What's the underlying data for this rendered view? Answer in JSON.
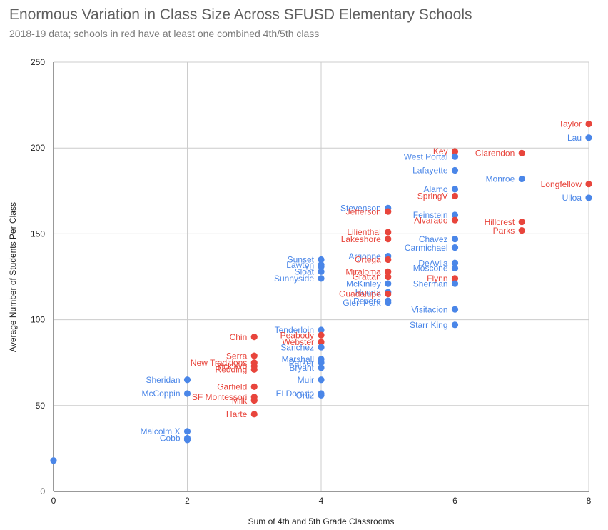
{
  "chart_data": {
    "type": "scatter",
    "title": "Enormous Variation in Class Size Across SFUSD Elementary Schools",
    "subtitle": "2018-19 data; schools in red have at least one combined 4th/5th class",
    "xlabel": "Sum of 4th and 5th Grade Classrooms",
    "ylabel": "Average Number of Students Per Class",
    "xlim": [
      0,
      8
    ],
    "ylim": [
      0,
      250
    ],
    "x_ticks": [
      0,
      2,
      4,
      6,
      8
    ],
    "y_ticks": [
      0,
      50,
      100,
      150,
      200,
      250
    ],
    "x_tick_labels": [
      "0",
      "2",
      "4",
      "6",
      "8"
    ],
    "y_tick_labels": [
      "0",
      "50",
      "100",
      "150",
      "200",
      "250"
    ],
    "grid": true,
    "colors": {
      "combined": "#e8453c",
      "standard": "#4a86e8"
    },
    "points": [
      {
        "x": 0,
        "y": 18,
        "label": "",
        "combined": false
      },
      {
        "x": 2,
        "y": 65,
        "label": "Sheridan",
        "combined": false
      },
      {
        "x": 2,
        "y": 57,
        "label": "McCoppin",
        "combined": false
      },
      {
        "x": 2,
        "y": 35,
        "label": "Malcolm X",
        "combined": false
      },
      {
        "x": 2,
        "y": 31,
        "label": "Cobb",
        "combined": false
      },
      {
        "x": 2,
        "y": 30,
        "label": "",
        "combined": false
      },
      {
        "x": 3,
        "y": 90,
        "label": "Chin",
        "combined": true
      },
      {
        "x": 3,
        "y": 79,
        "label": "Serra",
        "combined": true
      },
      {
        "x": 3,
        "y": 75,
        "label": "New Traditions",
        "combined": true
      },
      {
        "x": 3,
        "y": 73,
        "label": "Yick Wo",
        "combined": true
      },
      {
        "x": 3,
        "y": 71,
        "label": "Redding",
        "combined": true
      },
      {
        "x": 3,
        "y": 61,
        "label": "Garfield",
        "combined": true
      },
      {
        "x": 3,
        "y": 55,
        "label": "SF Montessori",
        "combined": true
      },
      {
        "x": 3,
        "y": 53,
        "label": "Milk",
        "combined": true
      },
      {
        "x": 3,
        "y": 45,
        "label": "Harte",
        "combined": true
      },
      {
        "x": 4,
        "y": 135,
        "label": "Sunset",
        "combined": false
      },
      {
        "x": 4,
        "y": 132,
        "label": "Lawton",
        "combined": false
      },
      {
        "x": 4,
        "y": 131,
        "label": "Yu",
        "combined": false
      },
      {
        "x": 4,
        "y": 128,
        "label": "Sloat",
        "combined": false
      },
      {
        "x": 4,
        "y": 124,
        "label": "Sunnyside",
        "combined": false
      },
      {
        "x": 4,
        "y": 94,
        "label": "Tenderloin",
        "combined": false
      },
      {
        "x": 4,
        "y": 91,
        "label": "Peabody",
        "combined": true
      },
      {
        "x": 4,
        "y": 87,
        "label": "Webster",
        "combined": true
      },
      {
        "x": 4,
        "y": 84,
        "label": "Sanchez",
        "combined": false
      },
      {
        "x": 4,
        "y": 77,
        "label": "Marshall",
        "combined": false
      },
      {
        "x": 4,
        "y": 75,
        "label": "Parker",
        "combined": false
      },
      {
        "x": 4,
        "y": 72,
        "label": "Bryant",
        "combined": false
      },
      {
        "x": 4,
        "y": 65,
        "label": "Muir",
        "combined": false
      },
      {
        "x": 4,
        "y": 57,
        "label": "El Dorado",
        "combined": false
      },
      {
        "x": 4,
        "y": 56,
        "label": "Ortiz",
        "combined": false
      },
      {
        "x": 5,
        "y": 165,
        "label": "Stevenson",
        "combined": false
      },
      {
        "x": 5,
        "y": 163,
        "label": "Jefferson",
        "combined": true
      },
      {
        "x": 5,
        "y": 151,
        "label": "Lilienthal",
        "combined": true
      },
      {
        "x": 5,
        "y": 147,
        "label": "Lakeshore",
        "combined": true
      },
      {
        "x": 5,
        "y": 137,
        "label": "Argonne",
        "combined": false
      },
      {
        "x": 5,
        "y": 135,
        "label": "Ortega",
        "combined": true
      },
      {
        "x": 5,
        "y": 128,
        "label": "Miraloma",
        "combined": true
      },
      {
        "x": 5,
        "y": 125,
        "label": "Grattan",
        "combined": true
      },
      {
        "x": 5,
        "y": 121,
        "label": "McKinley",
        "combined": false
      },
      {
        "x": 5,
        "y": 116,
        "label": "Huerta",
        "combined": false
      },
      {
        "x": 5,
        "y": 115,
        "label": "Guadalupe",
        "combined": true
      },
      {
        "x": 5,
        "y": 111,
        "label": "Revere",
        "combined": false
      },
      {
        "x": 5,
        "y": 110,
        "label": "Glen Park",
        "combined": false
      },
      {
        "x": 6,
        "y": 198,
        "label": "Key",
        "combined": true
      },
      {
        "x": 6,
        "y": 195,
        "label": "West Portal",
        "combined": false
      },
      {
        "x": 6,
        "y": 187,
        "label": "Lafayette",
        "combined": false
      },
      {
        "x": 6,
        "y": 176,
        "label": "Alamo",
        "combined": false
      },
      {
        "x": 6,
        "y": 172,
        "label": "SpringV",
        "combined": true
      },
      {
        "x": 6,
        "y": 161,
        "label": "Feinstein",
        "combined": false
      },
      {
        "x": 6,
        "y": 158,
        "label": "Alvarado",
        "combined": true
      },
      {
        "x": 6,
        "y": 147,
        "label": "Chavez",
        "combined": false
      },
      {
        "x": 6,
        "y": 142,
        "label": "Carmichael",
        "combined": false
      },
      {
        "x": 6,
        "y": 133,
        "label": "DeAvila",
        "combined": false
      },
      {
        "x": 6,
        "y": 130,
        "label": "Moscone",
        "combined": false
      },
      {
        "x": 6,
        "y": 124,
        "label": "Flynn",
        "combined": true
      },
      {
        "x": 6,
        "y": 121,
        "label": "Sherman",
        "combined": false
      },
      {
        "x": 6,
        "y": 106,
        "label": "Visitacion",
        "combined": false
      },
      {
        "x": 6,
        "y": 97,
        "label": "Starr King",
        "combined": false
      },
      {
        "x": 7,
        "y": 197,
        "label": "Clarendon",
        "combined": true
      },
      {
        "x": 7,
        "y": 182,
        "label": "Monroe",
        "combined": false
      },
      {
        "x": 7,
        "y": 157,
        "label": "Hillcrest",
        "combined": true
      },
      {
        "x": 7,
        "y": 152,
        "label": "Parks",
        "combined": true
      },
      {
        "x": 8,
        "y": 214,
        "label": "Taylor",
        "combined": true
      },
      {
        "x": 8,
        "y": 206,
        "label": "Lau",
        "combined": false
      },
      {
        "x": 8,
        "y": 179,
        "label": "Longfellow",
        "combined": true
      },
      {
        "x": 8,
        "y": 171,
        "label": "Ulloa",
        "combined": false
      }
    ]
  }
}
